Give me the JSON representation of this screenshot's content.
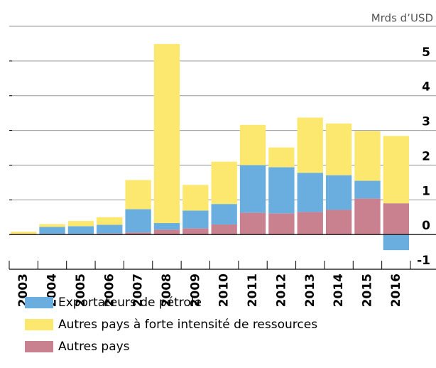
{
  "chart_data": {
    "type": "stacked_bar",
    "y_axis_label": "Mrds d’USD",
    "categories": [
      "2003",
      "2004",
      "2005",
      "2006",
      "2007",
      "2008",
      "2009",
      "2010",
      "2011",
      "2012",
      "2013",
      "2014",
      "2015",
      "2016"
    ],
    "series": [
      {
        "name": "Autres pays",
        "color": "#c9818f",
        "values": [
          0.02,
          0.02,
          0.02,
          0.03,
          0.06,
          0.14,
          0.18,
          0.29,
          0.63,
          0.61,
          0.65,
          0.71,
          1.04,
          0.9
        ]
      },
      {
        "name": "Exportateurs de pétrole",
        "color": "#6aaee0",
        "values": [
          0.0,
          0.2,
          0.22,
          0.25,
          0.67,
          0.19,
          0.51,
          0.59,
          1.37,
          1.33,
          1.13,
          1.0,
          0.51,
          -0.45
        ]
      },
      {
        "name": "Autres pays à forte intensité de ressources",
        "color": "#fde86f",
        "values": [
          0.06,
          0.08,
          0.15,
          0.22,
          0.84,
          5.16,
          0.74,
          1.22,
          1.16,
          0.57,
          1.59,
          1.49,
          1.43,
          1.94
        ]
      }
    ],
    "legend_order": [
      1,
      2,
      0
    ],
    "ylim": [
      -1,
      6
    ],
    "yticks": [
      -1,
      0,
      1,
      2,
      3,
      4,
      5
    ],
    "grid": true
  }
}
